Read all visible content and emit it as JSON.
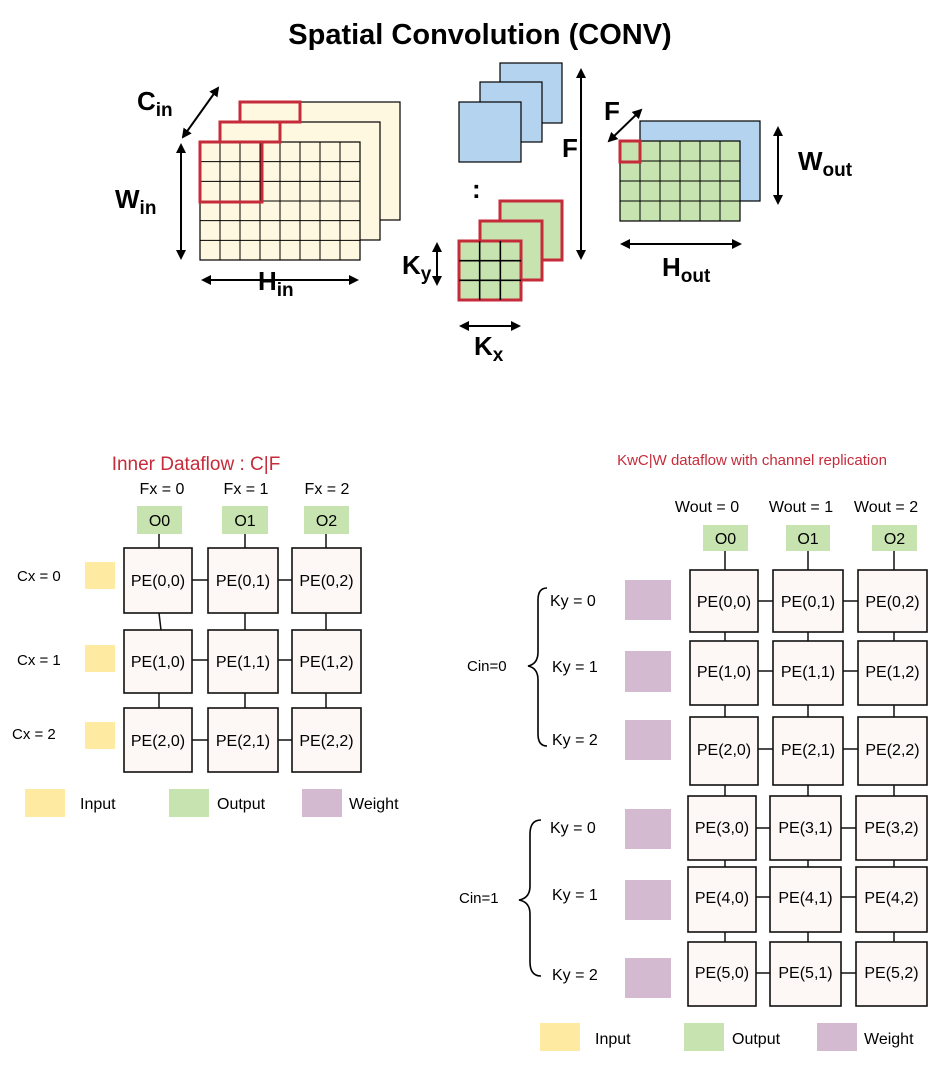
{
  "top": {
    "title": "Spatial Convolution (CONV)",
    "labels": {
      "c": "C",
      "c_sub": "in",
      "w": "W",
      "w_sub": "in",
      "h": "H",
      "h_sub": "in",
      "f_side": "F",
      "f_small": "F",
      "ky": "K",
      "ky_sub": "y",
      "kx": "K",
      "kx_sub": "x",
      "wout": "W",
      "wout_sub": "out",
      "hout": "H",
      "hout_sub": "out",
      "dots": ":"
    }
  },
  "left": {
    "title": "Inner Dataflow : C|F",
    "col_labels": [
      "Fx = 0",
      "Fx = 1",
      "Fx = 2"
    ],
    "outputs": [
      "O0",
      "O1",
      "O2"
    ],
    "row_labels": [
      "Cx = 0",
      "Cx = 1",
      "Cx = 2"
    ],
    "pes": [
      [
        "PE(0,0)",
        "PE(0,1)",
        "PE(0,2)"
      ],
      [
        "PE(1,0)",
        "PE(1,1)",
        "PE(1,2)"
      ],
      [
        "PE(2,0)",
        "PE(2,1)",
        "PE(2,2)"
      ]
    ],
    "legend": {
      "input": "Input",
      "output": "Output",
      "weight": "Weight"
    }
  },
  "right": {
    "title": "KwC|W dataflow with channel replication",
    "col_labels": [
      "Wout = 0",
      "Wout = 1",
      "Wout = 2"
    ],
    "outputs": [
      "O0",
      "O1",
      "O2"
    ],
    "group_labels": [
      "Cin=0",
      "Cin=1"
    ],
    "row_labels": [
      "Ky = 0",
      "Ky = 1",
      "Ky = 2",
      "Ky = 0",
      "Ky = 1",
      "Ky = 2"
    ],
    "pes": [
      [
        "PE(0,0)",
        "PE(0,1)",
        "PE(0,2)"
      ],
      [
        "PE(1,0)",
        "PE(1,1)",
        "PE(1,2)"
      ],
      [
        "PE(2,0)",
        "PE(2,1)",
        "PE(2,2)"
      ],
      [
        "PE(3,0)",
        "PE(3,1)",
        "PE(3,2)"
      ],
      [
        "PE(4,0)",
        "PE(4,1)",
        "PE(4,2)"
      ],
      [
        "PE(5,0)",
        "PE(5,1)",
        "PE(5,2)"
      ]
    ],
    "legend": {
      "input": "Input",
      "output": "Output",
      "weight": "Weight"
    }
  },
  "colors": {
    "input_swatch": "#ffeaa2",
    "output_swatch": "#c6e3b0",
    "weight_swatch": "#d4bad0",
    "input_tensor": "#fff8e1",
    "filter_blue": "#b4d3ee",
    "filter_green": "#c6e3b0",
    "highlight_red": "#c62b3a",
    "title_red": "#c62b3a"
  }
}
